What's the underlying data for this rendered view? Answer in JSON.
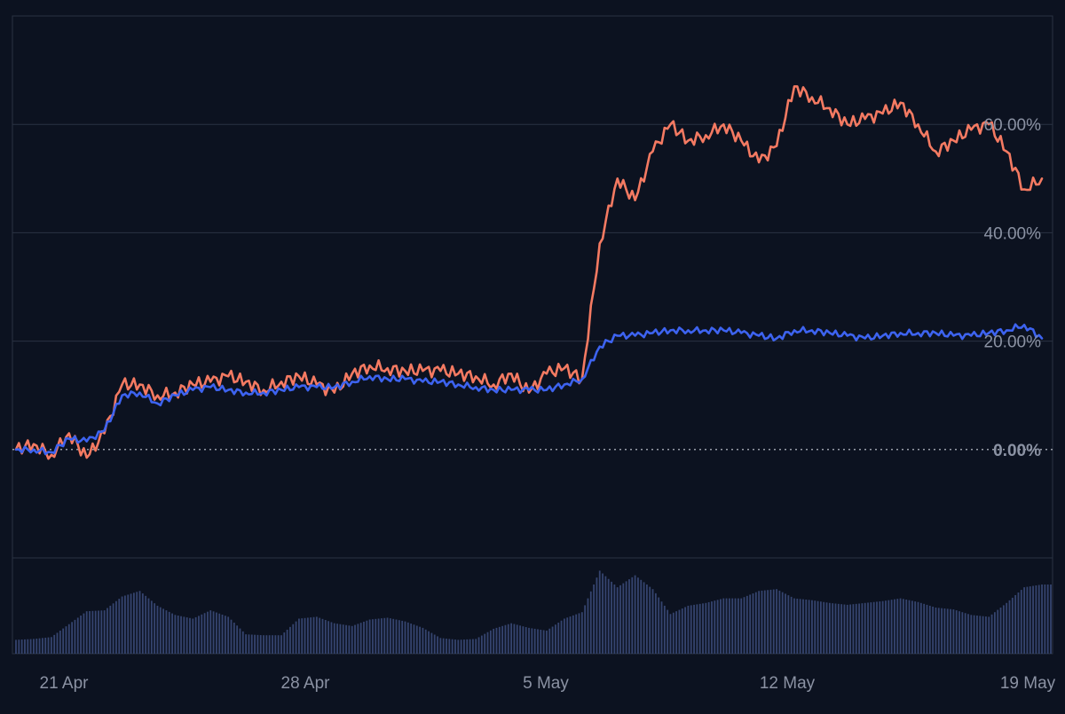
{
  "colors": {
    "background": "#0c1220",
    "grid": "#2a3242",
    "axis_text": "#8b92a3",
    "series_a": "#f47a62",
    "series_b": "#3d63f0",
    "volume": "#3a4a78"
  },
  "chart_data": {
    "type": "line",
    "x_ticks": [
      "21 Apr",
      "28 Apr",
      "5 May",
      "12 May",
      "19 May"
    ],
    "y_ticks": [
      "0.00%",
      "20.00%",
      "40.00%",
      "60.00%"
    ],
    "y_tick_values": [
      0,
      20,
      40,
      60
    ],
    "ylim": [
      -20,
      80
    ],
    "grid": true,
    "baseline": 0,
    "series": [
      {
        "color_key": "series_a",
        "x": [
          "2024-04-20 12:00",
          "2024-04-21 00:00",
          "2024-04-21 12:00",
          "2024-04-22 00:00",
          "2024-04-22 12:00",
          "2024-04-23 00:00",
          "2024-04-23 12:00",
          "2024-04-24 00:00",
          "2024-04-24 12:00",
          "2024-04-25 00:00",
          "2024-04-25 12:00",
          "2024-04-26 00:00",
          "2024-04-26 12:00",
          "2024-04-27 00:00",
          "2024-04-27 12:00",
          "2024-04-28 00:00",
          "2024-04-28 12:00",
          "2024-04-29 00:00",
          "2024-04-29 12:00",
          "2024-04-30 00:00",
          "2024-04-30 12:00",
          "2024-05-01 00:00",
          "2024-05-01 12:00",
          "2024-05-02 00:00",
          "2024-05-02 12:00",
          "2024-05-03 00:00",
          "2024-05-03 12:00",
          "2024-05-04 00:00",
          "2024-05-04 12:00",
          "2024-05-05 00:00",
          "2024-05-05 12:00",
          "2024-05-06 00:00",
          "2024-05-06 12:00",
          "2024-05-07 00:00",
          "2024-05-07 12:00",
          "2024-05-08 00:00",
          "2024-05-08 12:00",
          "2024-05-09 00:00",
          "2024-05-09 12:00",
          "2024-05-10 00:00",
          "2024-05-10 12:00",
          "2024-05-11 00:00",
          "2024-05-11 12:00",
          "2024-05-12 00:00",
          "2024-05-12 12:00",
          "2024-05-13 00:00",
          "2024-05-13 12:00",
          "2024-05-14 00:00",
          "2024-05-14 12:00",
          "2024-05-15 00:00",
          "2024-05-15 12:00",
          "2024-05-16 00:00",
          "2024-05-16 12:00",
          "2024-05-17 00:00",
          "2024-05-17 12:00",
          "2024-05-18 00:00",
          "2024-05-18 12:00",
          "2024-05-19 00:00",
          "2024-05-19 12:00"
        ],
        "values": [
          0.0,
          1.0,
          -1.0,
          3.0,
          -1.5,
          3.0,
          12.0,
          12.0,
          10.0,
          10.5,
          12.0,
          12.5,
          13.5,
          12.5,
          11.0,
          12.5,
          13.5,
          12.0,
          10.5,
          14.0,
          15.5,
          15.0,
          14.5,
          14.5,
          14.5,
          14.0,
          13.5,
          12.0,
          14.0,
          10.5,
          14.0,
          15.0,
          13.0,
          38.0,
          50.0,
          46.0,
          55.0,
          60.0,
          57.0,
          58.0,
          60.0,
          57.0,
          53.0,
          56.0,
          67.0,
          65.0,
          63.0,
          60.0,
          61.0,
          62.0,
          64.0,
          60.0,
          55.0,
          57.0,
          59.0,
          60.0,
          55.0,
          48.0,
          50.0
        ]
      },
      {
        "color_key": "series_b",
        "x": [
          "2024-04-20 12:00",
          "2024-04-21 00:00",
          "2024-04-21 12:00",
          "2024-04-22 00:00",
          "2024-04-22 12:00",
          "2024-04-23 00:00",
          "2024-04-23 12:00",
          "2024-04-24 00:00",
          "2024-04-24 12:00",
          "2024-04-25 00:00",
          "2024-04-25 12:00",
          "2024-04-26 00:00",
          "2024-04-26 12:00",
          "2024-04-27 00:00",
          "2024-04-27 12:00",
          "2024-04-28 00:00",
          "2024-04-28 12:00",
          "2024-04-29 00:00",
          "2024-04-29 12:00",
          "2024-04-30 00:00",
          "2024-04-30 12:00",
          "2024-05-01 00:00",
          "2024-05-01 12:00",
          "2024-05-02 00:00",
          "2024-05-02 12:00",
          "2024-05-03 00:00",
          "2024-05-03 12:00",
          "2024-05-04 00:00",
          "2024-05-04 12:00",
          "2024-05-05 00:00",
          "2024-05-05 12:00",
          "2024-05-06 00:00",
          "2024-05-06 12:00",
          "2024-05-07 00:00",
          "2024-05-07 12:00",
          "2024-05-08 00:00",
          "2024-05-08 12:00",
          "2024-05-09 00:00",
          "2024-05-09 12:00",
          "2024-05-10 00:00",
          "2024-05-10 12:00",
          "2024-05-11 00:00",
          "2024-05-11 12:00",
          "2024-05-12 00:00",
          "2024-05-12 12:00",
          "2024-05-13 00:00",
          "2024-05-13 12:00",
          "2024-05-14 00:00",
          "2024-05-14 12:00",
          "2024-05-15 00:00",
          "2024-05-15 12:00",
          "2024-05-16 00:00",
          "2024-05-16 12:00",
          "2024-05-17 00:00",
          "2024-05-17 12:00",
          "2024-05-18 00:00",
          "2024-05-18 12:00",
          "2024-05-19 00:00",
          "2024-05-19 12:00"
        ],
        "values": [
          0.0,
          0.0,
          -0.5,
          2.0,
          1.5,
          3.5,
          10.0,
          10.5,
          8.5,
          10.0,
          11.0,
          11.5,
          11.0,
          10.5,
          10.5,
          11.0,
          11.5,
          11.5,
          11.5,
          12.5,
          13.5,
          13.0,
          13.0,
          12.5,
          12.5,
          12.0,
          11.5,
          11.0,
          11.0,
          11.0,
          11.0,
          12.0,
          13.0,
          19.0,
          21.0,
          21.0,
          21.5,
          22.0,
          22.0,
          22.0,
          22.0,
          21.5,
          21.0,
          20.5,
          22.0,
          22.0,
          21.5,
          21.0,
          20.5,
          21.0,
          21.5,
          21.5,
          21.5,
          21.0,
          21.0,
          21.5,
          22.0,
          23.0,
          20.5
        ]
      }
    ],
    "volume": {
      "x": [
        "2024-04-20 12:00",
        "2024-04-21 00:00",
        "2024-04-21 12:00",
        "2024-04-22 00:00",
        "2024-04-22 12:00",
        "2024-04-23 00:00",
        "2024-04-23 12:00",
        "2024-04-24 00:00",
        "2024-04-24 12:00",
        "2024-04-25 00:00",
        "2024-04-25 12:00",
        "2024-04-26 00:00",
        "2024-04-26 12:00",
        "2024-04-27 00:00",
        "2024-04-27 12:00",
        "2024-04-28 00:00",
        "2024-04-28 12:00",
        "2024-04-29 00:00",
        "2024-04-29 12:00",
        "2024-04-30 00:00",
        "2024-04-30 12:00",
        "2024-05-01 00:00",
        "2024-05-01 12:00",
        "2024-05-02 00:00",
        "2024-05-02 12:00",
        "2024-05-03 00:00",
        "2024-05-03 12:00",
        "2024-05-04 00:00",
        "2024-05-04 12:00",
        "2024-05-05 00:00",
        "2024-05-05 12:00",
        "2024-05-06 00:00",
        "2024-05-06 12:00",
        "2024-05-07 00:00",
        "2024-05-07 12:00",
        "2024-05-08 00:00",
        "2024-05-08 12:00",
        "2024-05-09 00:00",
        "2024-05-09 12:00",
        "2024-05-10 00:00",
        "2024-05-10 12:00",
        "2024-05-11 00:00",
        "2024-05-11 12:00",
        "2024-05-12 00:00",
        "2024-05-12 12:00",
        "2024-05-13 00:00",
        "2024-05-13 12:00",
        "2024-05-14 00:00",
        "2024-05-14 12:00",
        "2024-05-15 00:00",
        "2024-05-15 12:00",
        "2024-05-16 00:00",
        "2024-05-16 12:00",
        "2024-05-17 00:00",
        "2024-05-17 12:00",
        "2024-05-18 00:00",
        "2024-05-18 12:00",
        "2024-05-19 00:00",
        "2024-05-19 12:00"
      ],
      "values": [
        0.15,
        0.16,
        0.18,
        0.32,
        0.46,
        0.47,
        0.62,
        0.68,
        0.52,
        0.42,
        0.38,
        0.47,
        0.4,
        0.21,
        0.2,
        0.2,
        0.38,
        0.4,
        0.33,
        0.3,
        0.37,
        0.39,
        0.35,
        0.28,
        0.17,
        0.15,
        0.16,
        0.27,
        0.33,
        0.28,
        0.25,
        0.38,
        0.45,
        0.9,
        0.72,
        0.85,
        0.7,
        0.43,
        0.52,
        0.55,
        0.6,
        0.6,
        0.68,
        0.7,
        0.6,
        0.58,
        0.55,
        0.53,
        0.55,
        0.57,
        0.6,
        0.56,
        0.5,
        0.48,
        0.42,
        0.4,
        0.55,
        0.72,
        0.75
      ]
    }
  }
}
